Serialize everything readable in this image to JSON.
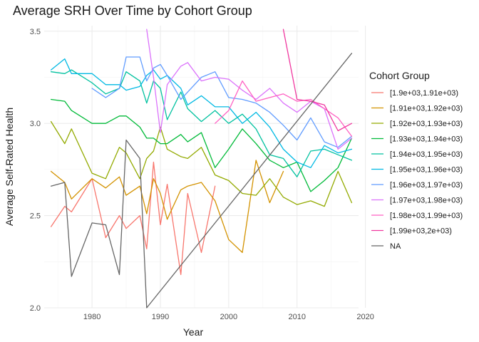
{
  "chart_data": {
    "type": "line",
    "title": "Average SRH Over Time by Cohort Group",
    "xlabel": "Year",
    "ylabel": "Average Self-Rated Health",
    "xlim": [
      1973,
      2019
    ],
    "ylim": [
      2.0,
      3.53
    ],
    "x_ticks": [
      1980,
      1990,
      2000,
      2010,
      2020
    ],
    "y_ticks": [
      2.0,
      2.5,
      3.0,
      3.5
    ],
    "x_tick_labels": [
      "1980",
      "1990",
      "2000",
      "2010",
      "2020"
    ],
    "y_tick_labels": [
      "2.0",
      "2.5",
      "3.0",
      "3.5"
    ],
    "grid": true,
    "legend_title": "Cohort Group",
    "legend_position": "right",
    "series": [
      {
        "name": "[1.9e+03,1.91e+03)",
        "color": "#F8766D",
        "x": [
          1974,
          1976,
          1977,
          1980,
          1982,
          1984,
          1985,
          1987,
          1988,
          1989,
          1990,
          1991,
          1993,
          1994,
          1996,
          1998
        ],
        "y": [
          2.44,
          2.55,
          2.52,
          2.7,
          2.38,
          2.5,
          2.43,
          2.5,
          2.32,
          2.79,
          2.45,
          2.67,
          2.18,
          2.62,
          2.3,
          2.66
        ]
      },
      {
        "name": "[1.91e+03,1.92e+03)",
        "color": "#D39200",
        "x": [
          1974,
          1976,
          1977,
          1980,
          1982,
          1984,
          1985,
          1987,
          1988,
          1989,
          1990,
          1991,
          1993,
          1994,
          1996,
          1998,
          2000,
          2002,
          2004,
          2006,
          2008
        ],
        "y": [
          2.74,
          2.68,
          2.59,
          2.7,
          2.65,
          2.71,
          2.61,
          2.66,
          2.51,
          2.7,
          2.62,
          2.48,
          2.64,
          2.66,
          2.68,
          2.58,
          2.37,
          2.3,
          2.8,
          2.57,
          2.74
        ]
      },
      {
        "name": "[1.92e+03,1.93e+03)",
        "color": "#93AA00",
        "x": [
          1974,
          1976,
          1977,
          1980,
          1982,
          1984,
          1985,
          1987,
          1988,
          1989,
          1990,
          1991,
          1993,
          1994,
          1996,
          1998,
          2000,
          2002,
          2004,
          2006,
          2008,
          2010,
          2012,
          2014,
          2016,
          2018
        ],
        "y": [
          3.01,
          2.89,
          2.97,
          2.73,
          2.7,
          2.87,
          2.84,
          2.7,
          2.81,
          2.85,
          2.98,
          2.86,
          2.82,
          2.81,
          2.87,
          2.72,
          2.69,
          2.62,
          2.61,
          2.7,
          2.6,
          2.56,
          2.58,
          2.55,
          2.74,
          2.57
        ]
      },
      {
        "name": "[1.93e+03,1.94e+03)",
        "color": "#00BA38",
        "x": [
          1974,
          1976,
          1977,
          1980,
          1982,
          1984,
          1985,
          1987,
          1988,
          1989,
          1990,
          1991,
          1993,
          1994,
          1996,
          1998,
          2000,
          2002,
          2004,
          2006,
          2008,
          2010,
          2012,
          2014,
          2016,
          2018
        ],
        "y": [
          3.13,
          3.12,
          3.07,
          3.0,
          3.0,
          3.04,
          3.04,
          2.98,
          2.92,
          2.92,
          2.89,
          2.89,
          2.94,
          2.9,
          2.95,
          2.76,
          2.86,
          2.97,
          2.89,
          2.8,
          2.76,
          2.79,
          2.63,
          2.69,
          2.76,
          2.92
        ]
      },
      {
        "name": "[1.94e+03,1.95e+03)",
        "color": "#00C19F",
        "x": [
          1974,
          1976,
          1977,
          1980,
          1982,
          1984,
          1985,
          1987,
          1988,
          1989,
          1990,
          1991,
          1993,
          1994,
          1996,
          1998,
          2000,
          2002,
          2004,
          2006,
          2008,
          2010,
          2012,
          2014,
          2016,
          2018
        ],
        "y": [
          3.28,
          3.27,
          3.29,
          3.22,
          3.16,
          3.19,
          3.28,
          3.23,
          3.11,
          3.23,
          3.19,
          3.02,
          3.17,
          3.08,
          3.01,
          3.07,
          3.0,
          3.05,
          2.97,
          2.83,
          2.81,
          2.71,
          2.85,
          2.86,
          2.83,
          2.8
        ]
      },
      {
        "name": "[1.95e+03,1.96e+03)",
        "color": "#00B9E3",
        "x": [
          1974,
          1976,
          1977,
          1980,
          1982,
          1984,
          1985,
          1987,
          1988,
          1989,
          1990,
          1991,
          1993,
          1994,
          1996,
          1998,
          2000,
          2002,
          2004,
          2006,
          2008,
          2010,
          2012,
          2014,
          2016,
          2018
        ],
        "y": [
          3.29,
          3.35,
          3.27,
          3.27,
          3.21,
          3.21,
          3.18,
          3.2,
          3.26,
          3.29,
          3.24,
          3.26,
          3.19,
          3.1,
          3.15,
          3.09,
          3.09,
          3.0,
          3.06,
          2.98,
          2.86,
          2.79,
          2.76,
          2.88,
          2.84,
          2.86
        ]
      },
      {
        "name": "[1.96e+03,1.97e+03)",
        "color": "#619CFF",
        "x": [
          1980,
          1982,
          1984,
          1985,
          1987,
          1988,
          1989,
          1990,
          1991,
          1993,
          1994,
          1996,
          1998,
          2000,
          2002,
          2004,
          2006,
          2008,
          2010,
          2012,
          2014,
          2016,
          2018
        ],
        "y": [
          3.19,
          3.14,
          3.19,
          3.36,
          3.36,
          3.23,
          3.3,
          3.32,
          3.26,
          3.13,
          3.17,
          3.25,
          3.28,
          3.14,
          3.13,
          3.11,
          3.06,
          2.99,
          2.91,
          3.03,
          2.9,
          2.87,
          2.93
        ]
      },
      {
        "name": "[1.97e+03,1.98e+03)",
        "color": "#DB72FB",
        "x": [
          1988,
          1989,
          1990,
          1991,
          1993,
          1994,
          1996,
          1998,
          2000,
          2002,
          2004,
          2006,
          2008,
          2010,
          2012,
          2014,
          2016,
          2018
        ],
        "y": [
          3.51,
          3.25,
          2.95,
          3.21,
          3.31,
          3.33,
          3.23,
          3.25,
          3.24,
          3.18,
          3.13,
          3.19,
          3.11,
          3.06,
          3.12,
          3.08,
          2.86,
          2.92
        ]
      },
      {
        "name": "[1.98e+03,1.99e+03)",
        "color": "#FF61C3",
        "x": [
          1998,
          2000,
          2002,
          2004,
          2006,
          2008,
          2010,
          2012,
          2014,
          2016,
          2018
        ],
        "y": [
          3.0,
          3.07,
          3.23,
          3.12,
          3.14,
          3.16,
          3.12,
          3.13,
          3.08,
          3.03,
          2.93
        ]
      },
      {
        "name": "[1.99e+03,2e+03)",
        "color": "#F0389F",
        "x": [
          2008,
          2010,
          2012,
          2014,
          2016,
          2018
        ],
        "y": [
          3.51,
          3.13,
          3.12,
          3.1,
          2.96,
          3.0
        ]
      },
      {
        "name": "NA",
        "color": "#666666",
        "x": [
          1974,
          1976,
          1977,
          1980,
          1982,
          1984,
          1985,
          1987,
          1988,
          2018
        ],
        "y": [
          2.66,
          2.68,
          2.17,
          2.46,
          2.45,
          2.18,
          2.91,
          2.81,
          2.0,
          3.38
        ]
      }
    ]
  }
}
